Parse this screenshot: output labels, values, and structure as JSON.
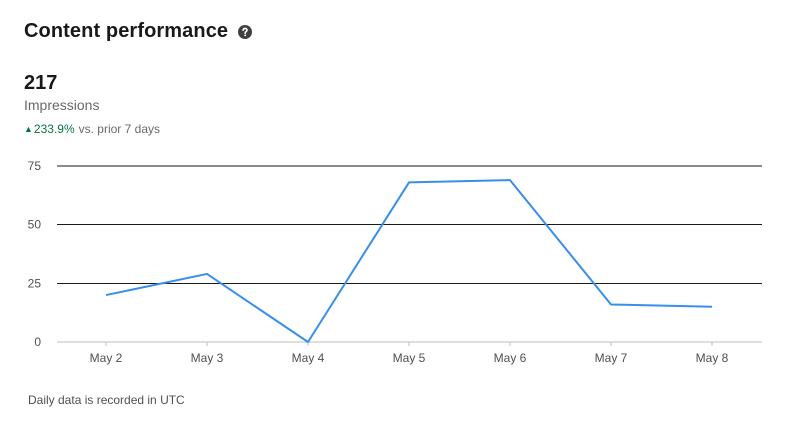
{
  "header": {
    "title": "Content performance",
    "help_icon": "question-circle-icon"
  },
  "metric": {
    "value": "217",
    "label": "Impressions",
    "change_value": "233.9%",
    "change_text": "vs. prior 7 days",
    "change_direction": "up",
    "change_color": "#057642"
  },
  "footnote": "Daily data is recorded in UTC",
  "chart_data": {
    "type": "line",
    "categories": [
      "May 2",
      "May 3",
      "May 4",
      "May 5",
      "May 6",
      "May 7",
      "May 8"
    ],
    "series": [
      {
        "values": [
          20,
          29,
          0,
          68,
          69,
          16,
          15
        ],
        "color": "#378fe9"
      }
    ],
    "yticks": [
      0,
      25,
      50,
      75
    ],
    "ylim": [
      0,
      75
    ],
    "grid": true,
    "legend": "none"
  }
}
